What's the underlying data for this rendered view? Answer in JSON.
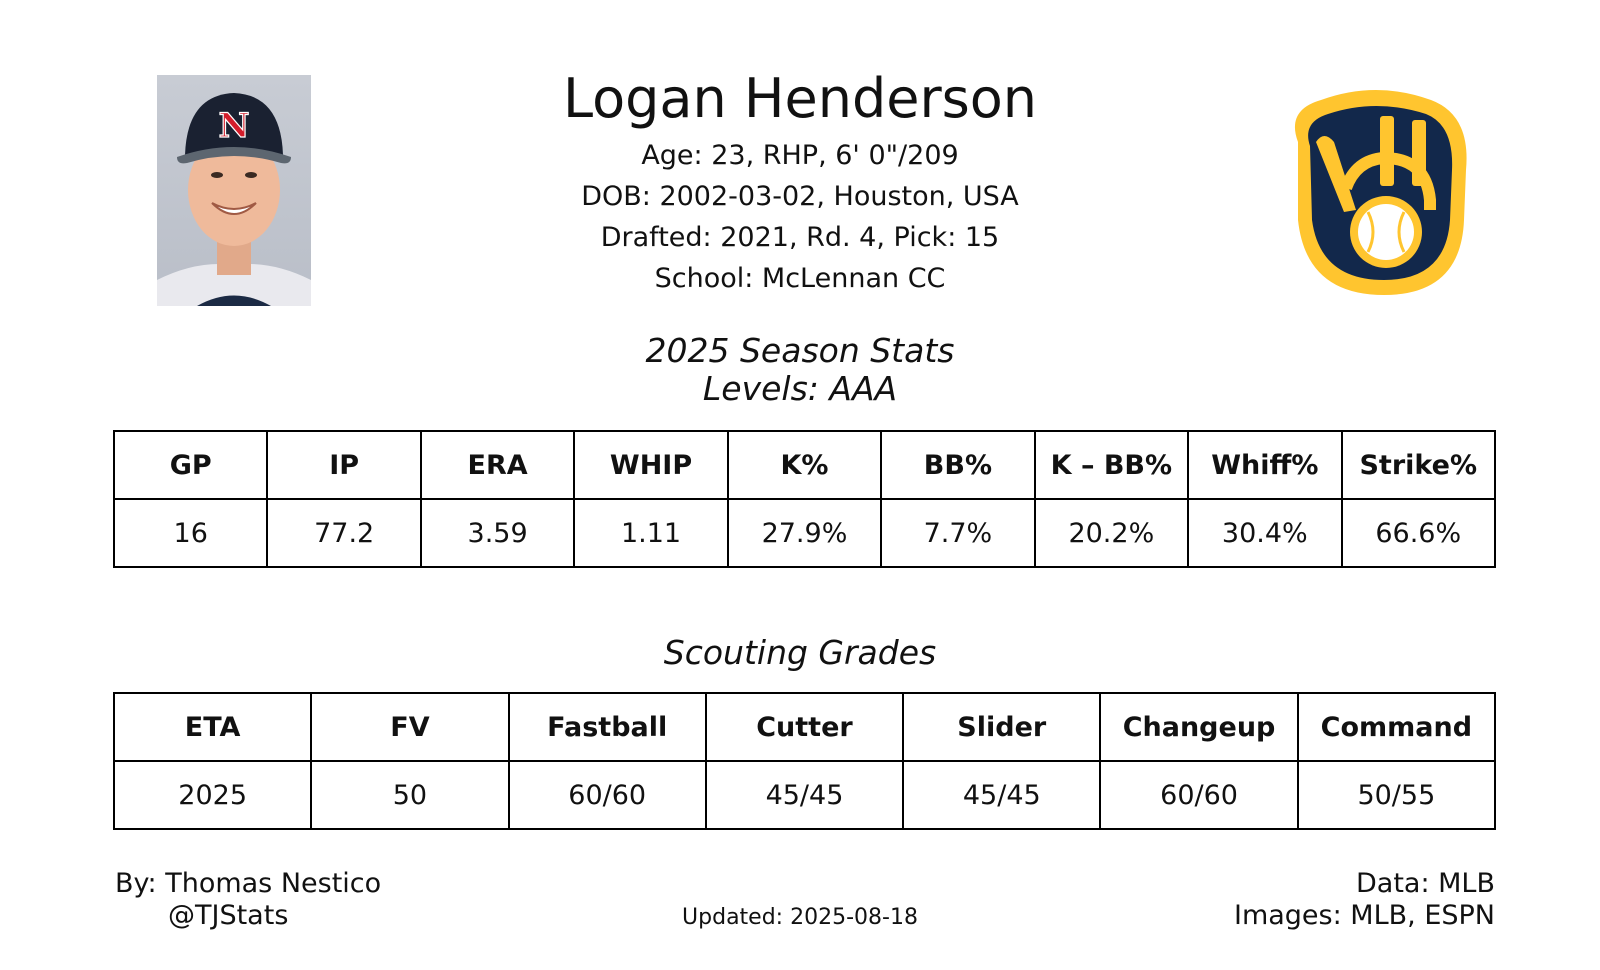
{
  "player": {
    "name": "Logan Henderson",
    "bio": [
      "Age: 23, RHP, 6' 0\"/209",
      "DOB: 2002-03-02, Houston, USA",
      "Drafted: 2021, Rd. 4, Pick: 15",
      "School: McLennan CC"
    ],
    "photo_icon": "player-headshot",
    "cap_letter": "N",
    "team_logo_icon": "ball-in-glove-logo",
    "colors": {
      "logo_navy": "#12284b",
      "logo_gold": "#ffc52f",
      "cap_red": "#d31d2b"
    }
  },
  "season_stats": {
    "title": "2025 Season Stats",
    "levels": "Levels: AAA",
    "headers": [
      "GP",
      "IP",
      "ERA",
      "WHIP",
      "K%",
      "BB%",
      "K – BB%",
      "Whiff%",
      "Strike%"
    ],
    "values": [
      "16",
      "77.2",
      "3.59",
      "1.11",
      "27.9%",
      "7.7%",
      "20.2%",
      "30.4%",
      "66.6%"
    ]
  },
  "scouting": {
    "title": "Scouting Grades",
    "headers": [
      "ETA",
      "FV",
      "Fastball",
      "Cutter",
      "Slider",
      "Changeup",
      "Command"
    ],
    "values": [
      "2025",
      "50",
      "60/60",
      "45/45",
      "45/45",
      "60/60",
      "50/55"
    ]
  },
  "footer": {
    "by": "By: Thomas Nestico",
    "handle": "@TJStats",
    "updated": "Updated: 2025-08-18",
    "data_source": "Data: MLB",
    "images_source": "Images: MLB, ESPN"
  }
}
